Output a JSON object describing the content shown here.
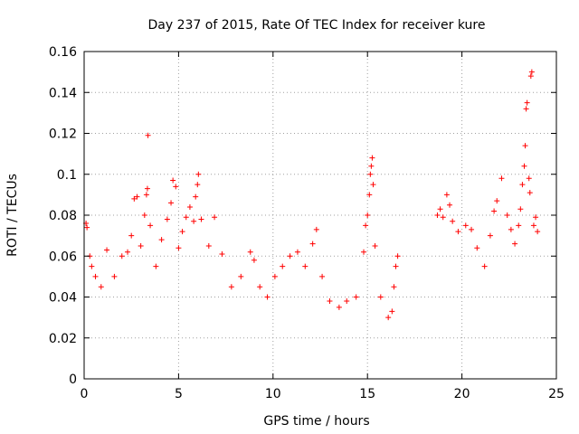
{
  "chart_data": {
    "type": "scatter",
    "title": "Day 237 of 2015, Rate Of TEC Index for receiver kure",
    "xlabel": "GPS time / hours",
    "ylabel": "ROTI / TECUs",
    "xlim": [
      0,
      25
    ],
    "ylim": [
      0,
      0.16
    ],
    "xticks": [
      0,
      5,
      10,
      15,
      20,
      25
    ],
    "xtick_labels": [
      "0",
      "5",
      "10",
      "15",
      "20",
      "25"
    ],
    "yticks": [
      0,
      0.02,
      0.04,
      0.06,
      0.08,
      0.1,
      0.12,
      0.14,
      0.16
    ],
    "ytick_labels": [
      "0",
      "0.02",
      "0.04",
      "0.06",
      "0.08",
      "0.1",
      "0.12",
      "0.14",
      "0.16"
    ],
    "grid": true,
    "marker": "+",
    "color": "#ff0000",
    "series": [
      {
        "points": [
          [
            0.1,
            0.076
          ],
          [
            0.15,
            0.074
          ],
          [
            0.3,
            0.06
          ],
          [
            0.4,
            0.055
          ],
          [
            0.6,
            0.05
          ],
          [
            0.9,
            0.045
          ],
          [
            1.2,
            0.063
          ],
          [
            1.6,
            0.05
          ],
          [
            2.0,
            0.06
          ],
          [
            2.3,
            0.062
          ],
          [
            2.5,
            0.07
          ],
          [
            2.65,
            0.088
          ],
          [
            2.8,
            0.089
          ],
          [
            3.0,
            0.065
          ],
          [
            3.2,
            0.08
          ],
          [
            3.3,
            0.09
          ],
          [
            3.35,
            0.093
          ],
          [
            3.38,
            0.119
          ],
          [
            3.5,
            0.075
          ],
          [
            3.8,
            0.055
          ],
          [
            4.1,
            0.068
          ],
          [
            4.4,
            0.078
          ],
          [
            4.6,
            0.086
          ],
          [
            4.7,
            0.097
          ],
          [
            4.85,
            0.094
          ],
          [
            5.0,
            0.064
          ],
          [
            5.2,
            0.072
          ],
          [
            5.4,
            0.079
          ],
          [
            5.6,
            0.084
          ],
          [
            5.8,
            0.077
          ],
          [
            5.9,
            0.089
          ],
          [
            6.0,
            0.095
          ],
          [
            6.05,
            0.1
          ],
          [
            6.2,
            0.078
          ],
          [
            6.6,
            0.065
          ],
          [
            6.9,
            0.079
          ],
          [
            7.3,
            0.061
          ],
          [
            7.8,
            0.045
          ],
          [
            8.3,
            0.05
          ],
          [
            8.8,
            0.062
          ],
          [
            9.0,
            0.058
          ],
          [
            9.3,
            0.045
          ],
          [
            9.7,
            0.04
          ],
          [
            10.1,
            0.05
          ],
          [
            10.5,
            0.055
          ],
          [
            10.9,
            0.06
          ],
          [
            11.3,
            0.062
          ],
          [
            11.7,
            0.055
          ],
          [
            12.1,
            0.066
          ],
          [
            12.3,
            0.073
          ],
          [
            12.6,
            0.05
          ],
          [
            13.0,
            0.038
          ],
          [
            13.5,
            0.035
          ],
          [
            13.9,
            0.038
          ],
          [
            14.4,
            0.04
          ],
          [
            14.8,
            0.062
          ],
          [
            14.9,
            0.075
          ],
          [
            15.0,
            0.08
          ],
          [
            15.1,
            0.09
          ],
          [
            15.15,
            0.1
          ],
          [
            15.2,
            0.104
          ],
          [
            15.25,
            0.108
          ],
          [
            15.3,
            0.095
          ],
          [
            15.4,
            0.065
          ],
          [
            15.7,
            0.04
          ],
          [
            16.1,
            0.03
          ],
          [
            16.3,
            0.033
          ],
          [
            16.4,
            0.045
          ],
          [
            16.5,
            0.055
          ],
          [
            16.6,
            0.06
          ],
          [
            18.7,
            0.08
          ],
          [
            18.85,
            0.083
          ],
          [
            19.0,
            0.079
          ],
          [
            19.2,
            0.09
          ],
          [
            19.35,
            0.085
          ],
          [
            19.5,
            0.077
          ],
          [
            19.8,
            0.072
          ],
          [
            20.2,
            0.075
          ],
          [
            20.5,
            0.073
          ],
          [
            20.8,
            0.064
          ],
          [
            21.2,
            0.055
          ],
          [
            21.5,
            0.07
          ],
          [
            21.7,
            0.082
          ],
          [
            21.85,
            0.087
          ],
          [
            22.1,
            0.098
          ],
          [
            22.4,
            0.08
          ],
          [
            22.6,
            0.073
          ],
          [
            22.8,
            0.066
          ],
          [
            23.0,
            0.075
          ],
          [
            23.1,
            0.083
          ],
          [
            23.2,
            0.095
          ],
          [
            23.3,
            0.104
          ],
          [
            23.35,
            0.114
          ],
          [
            23.4,
            0.132
          ],
          [
            23.45,
            0.135
          ],
          [
            23.55,
            0.098
          ],
          [
            23.6,
            0.091
          ],
          [
            23.65,
            0.148
          ],
          [
            23.7,
            0.15
          ],
          [
            23.8,
            0.075
          ],
          [
            23.9,
            0.079
          ],
          [
            24.0,
            0.072
          ]
        ]
      }
    ]
  }
}
